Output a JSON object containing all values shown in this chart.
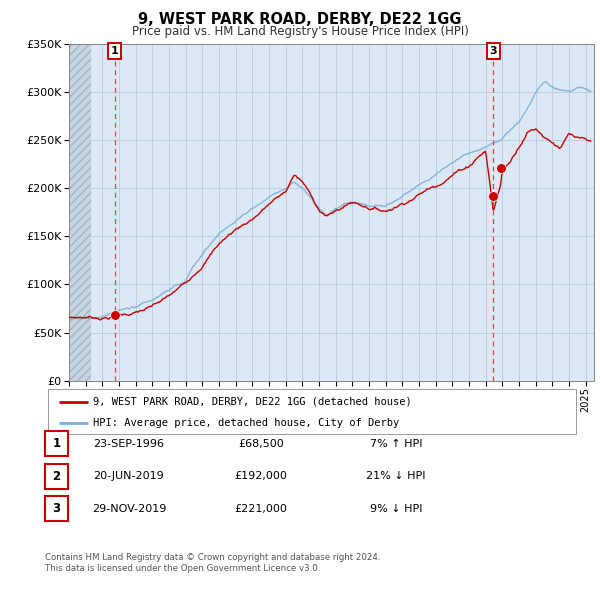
{
  "title": "9, WEST PARK ROAD, DERBY, DE22 1GG",
  "subtitle": "Price paid vs. HM Land Registry's House Price Index (HPI)",
  "ylim": [
    0,
    350000
  ],
  "yticks": [
    0,
    50000,
    100000,
    150000,
    200000,
    250000,
    300000,
    350000
  ],
  "xlim_start": 1994.0,
  "xlim_end": 2025.5,
  "hatch_end": 1995.3,
  "bg_color": "#dce8f5",
  "hatch_facecolor": "#c8d4e0",
  "grid_color": "#b8cce0",
  "red_line_color": "#cc0000",
  "blue_line_color": "#7bafd4",
  "vline_color": "#dd4444",
  "vline1_x": 1996.73,
  "vline2_x": 2019.46,
  "sale1_x": 1996.73,
  "sale1_y": 68500,
  "sale2_x": 2019.46,
  "sale2_y": 192000,
  "sale3_x": 2019.91,
  "sale3_y": 221000,
  "legend_red_label": "9, WEST PARK ROAD, DERBY, DE22 1GG (detached house)",
  "legend_blue_label": "HPI: Average price, detached house, City of Derby",
  "table_rows": [
    {
      "num": "1",
      "date": "23-SEP-1996",
      "price": "£68,500",
      "change": "7% ↑ HPI"
    },
    {
      "num": "2",
      "date": "20-JUN-2019",
      "price": "£192,000",
      "change": "21% ↓ HPI"
    },
    {
      "num": "3",
      "date": "29-NOV-2019",
      "price": "£221,000",
      "change": "9% ↓ HPI"
    }
  ],
  "footnote1": "Contains HM Land Registry data © Crown copyright and database right 2024.",
  "footnote2": "This data is licensed under the Open Government Licence v3.0."
}
